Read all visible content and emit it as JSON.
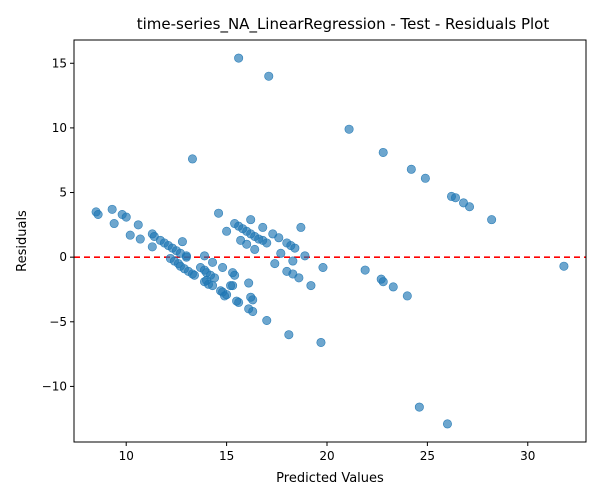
{
  "chart_data": {
    "type": "scatter",
    "title": "time-series_NA_LinearRegression - Test - Residuals Plot",
    "xlabel": "Predicted Values",
    "ylabel": "Residuals",
    "xlim": [
      7.4,
      32.9
    ],
    "ylim": [
      -14.3,
      16.8
    ],
    "xticks": [
      10,
      15,
      20,
      25,
      30
    ],
    "yticks": [
      -10,
      -5,
      0,
      5,
      10,
      15
    ],
    "xtick_labels": [
      "10",
      "15",
      "20",
      "25",
      "30"
    ],
    "ytick_labels": [
      "−10",
      "−5",
      "0",
      "5",
      "10",
      "15"
    ],
    "grid": false,
    "reference_line": {
      "y": 0,
      "color": "#ff0000",
      "style": "dashed"
    },
    "marker_color": "#1f77b4",
    "marker_alpha": 0.65,
    "points": [
      [
        15.6,
        15.4
      ],
      [
        17.1,
        14.0
      ],
      [
        21.1,
        9.9
      ],
      [
        22.8,
        8.1
      ],
      [
        13.3,
        7.6
      ],
      [
        24.2,
        6.8
      ],
      [
        24.9,
        6.1
      ],
      [
        26.2,
        4.7
      ],
      [
        26.4,
        4.6
      ],
      [
        26.8,
        4.2
      ],
      [
        27.1,
        3.9
      ],
      [
        28.2,
        2.9
      ],
      [
        8.5,
        3.5
      ],
      [
        8.6,
        3.3
      ],
      [
        9.3,
        3.7
      ],
      [
        9.8,
        3.3
      ],
      [
        10.0,
        3.1
      ],
      [
        9.4,
        2.6
      ],
      [
        10.6,
        2.5
      ],
      [
        10.2,
        1.7
      ],
      [
        10.7,
        1.4
      ],
      [
        11.3,
        1.8
      ],
      [
        11.4,
        1.6
      ],
      [
        11.3,
        0.8
      ],
      [
        11.7,
        1.3
      ],
      [
        11.9,
        1.1
      ],
      [
        12.1,
        0.9
      ],
      [
        12.3,
        0.7
      ],
      [
        12.5,
        0.5
      ],
      [
        12.8,
        1.2
      ],
      [
        12.7,
        0.3
      ],
      [
        13.0,
        0.1
      ],
      [
        13.0,
        0.0
      ],
      [
        14.6,
        3.4
      ],
      [
        15.4,
        2.6
      ],
      [
        15.6,
        2.4
      ],
      [
        15.8,
        2.2
      ],
      [
        16.0,
        2.0
      ],
      [
        16.2,
        2.9
      ],
      [
        16.2,
        1.8
      ],
      [
        16.4,
        1.6
      ],
      [
        16.6,
        1.4
      ],
      [
        16.8,
        1.3
      ],
      [
        17.0,
        1.1
      ],
      [
        17.3,
        1.8
      ],
      [
        17.6,
        1.5
      ],
      [
        18.0,
        1.1
      ],
      [
        18.2,
        0.9
      ],
      [
        18.4,
        0.7
      ],
      [
        18.7,
        2.3
      ],
      [
        15.0,
        2.0
      ],
      [
        15.7,
        1.3
      ],
      [
        16.0,
        1.0
      ],
      [
        16.4,
        0.6
      ],
      [
        16.8,
        2.3
      ],
      [
        17.7,
        0.3
      ],
      [
        18.9,
        0.1
      ],
      [
        19.8,
        -0.8
      ],
      [
        21.9,
        -1.0
      ],
      [
        17.4,
        -0.5
      ],
      [
        18.3,
        -0.3
      ],
      [
        18.0,
        -1.1
      ],
      [
        18.3,
        -1.3
      ],
      [
        18.6,
        -1.6
      ],
      [
        19.2,
        -2.2
      ],
      [
        22.7,
        -1.7
      ],
      [
        22.8,
        -1.9
      ],
      [
        23.3,
        -2.3
      ],
      [
        24.0,
        -3.0
      ],
      [
        16.3,
        -3.3
      ],
      [
        17.0,
        -4.9
      ],
      [
        18.1,
        -6.0
      ],
      [
        19.7,
        -6.6
      ],
      [
        24.6,
        -11.6
      ],
      [
        26.0,
        -12.9
      ],
      [
        31.8,
        -0.7
      ],
      [
        12.2,
        -0.1
      ],
      [
        12.4,
        -0.3
      ],
      [
        12.6,
        -0.5
      ],
      [
        12.7,
        -0.7
      ],
      [
        12.9,
        -0.9
      ],
      [
        13.1,
        -1.1
      ],
      [
        13.3,
        -1.3
      ],
      [
        13.4,
        -1.4
      ],
      [
        13.7,
        -0.8
      ],
      [
        13.9,
        -1.0
      ],
      [
        14.0,
        -1.2
      ],
      [
        14.2,
        -1.4
      ],
      [
        14.4,
        -1.6
      ],
      [
        13.9,
        -1.9
      ],
      [
        14.1,
        -2.1
      ],
      [
        14.3,
        -2.2
      ],
      [
        13.9,
        0.1
      ],
      [
        14.3,
        -0.4
      ],
      [
        14.8,
        -0.8
      ],
      [
        14.7,
        -2.6
      ],
      [
        14.8,
        -2.7
      ],
      [
        15.0,
        -2.9
      ],
      [
        15.2,
        -2.2
      ],
      [
        15.3,
        -1.2
      ],
      [
        15.4,
        -1.4
      ],
      [
        15.6,
        -3.5
      ],
      [
        16.1,
        -2.0
      ],
      [
        16.1,
        -4.0
      ],
      [
        16.2,
        -3.1
      ],
      [
        16.3,
        -4.2
      ],
      [
        15.3,
        -2.2
      ],
      [
        15.5,
        -3.4
      ],
      [
        14.0,
        -1.8
      ],
      [
        14.9,
        -3.0
      ]
    ]
  }
}
